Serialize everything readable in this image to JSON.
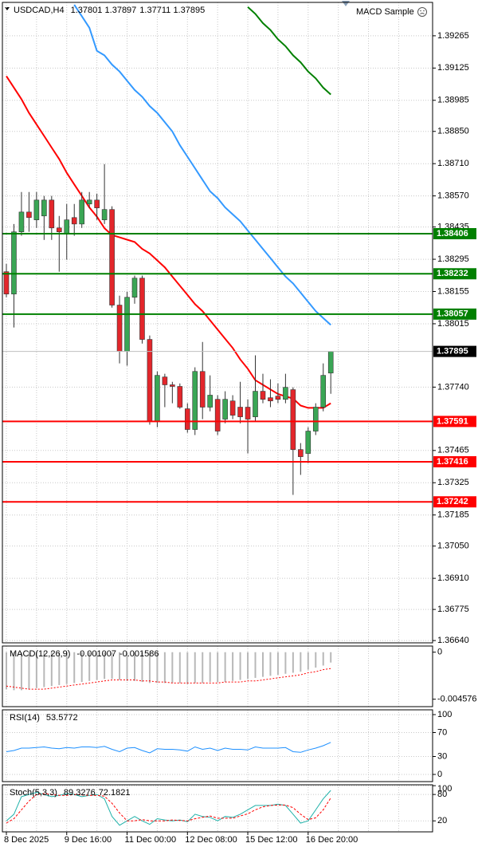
{
  "chart_data": [
    {
      "type": "candlestick",
      "title": "USDCAD,H4",
      "expert": "MACD Sample",
      "categories": [
        "8 Dec 2025",
        null,
        null,
        null,
        null,
        null,
        null,
        null,
        "9 Dec 16:00",
        null,
        null,
        null,
        null,
        null,
        null,
        null,
        "11 Dec 00:00",
        null,
        null,
        null,
        null,
        null,
        null,
        null,
        "12 Dec 08:00",
        null,
        null,
        null,
        null,
        null,
        null,
        null,
        "15 Dec 12:00",
        null,
        null,
        null,
        null,
        null,
        null,
        null,
        "16 Dec 20:00",
        null,
        null,
        null
      ],
      "open": [
        1.38241,
        1.38144,
        1.38414,
        1.385,
        1.38466,
        1.38483,
        1.38552,
        1.38431,
        1.38407,
        1.38476,
        1.38448,
        1.38535,
        1.38552,
        1.38466,
        1.38511,
        1.38096,
        1.37895,
        1.3813,
        1.38213,
        1.37947,
        1.3759,
        1.37784,
        1.3775,
        1.37743,
        1.37646,
        1.37556,
        1.37808,
        1.37653,
        1.37687,
        1.37601,
        1.3768,
        1.37653,
        1.37653,
        1.37611,
        1.37722,
        1.37694,
        1.37701,
        1.37687,
        1.37729,
        1.37469,
        1.37452,
        1.37549,
        1.37653,
        1.37801
      ],
      "high": [
        1.38275,
        1.38448,
        1.38587,
        1.38587,
        1.38587,
        1.3857,
        1.3857,
        1.38483,
        1.38535,
        1.38535,
        1.38587,
        1.38587,
        1.3858,
        1.38708,
        1.38525,
        1.38137,
        1.38154,
        1.38224,
        1.38224,
        1.37964,
        1.37808,
        1.37798,
        1.37763,
        1.37756,
        1.3767,
        1.37826,
        1.37936,
        1.37791,
        1.37705,
        1.37722,
        1.37705,
        1.37763,
        1.37687,
        1.37878,
        1.37798,
        1.37774,
        1.37756,
        1.37798,
        1.37739,
        1.37497,
        1.37566,
        1.3767,
        1.37843,
        1.37897
      ],
      "low": [
        1.3813,
        1.37999,
        1.38397,
        1.38414,
        1.38431,
        1.38379,
        1.38379,
        1.38241,
        1.38293,
        1.38397,
        1.38431,
        1.38518,
        1.38466,
        1.38448,
        1.38085,
        1.37843,
        1.37833,
        1.38102,
        1.37929,
        1.37577,
        1.37566,
        1.37653,
        1.3767,
        1.37646,
        1.37542,
        1.37532,
        1.37601,
        1.37635,
        1.37532,
        1.37583,
        1.37601,
        1.37583,
        1.37452,
        1.3759,
        1.3767,
        1.37653,
        1.3767,
        1.3767,
        1.37272,
        1.37359,
        1.3741,
        1.37532,
        1.37635,
        1.37711
      ],
      "close": [
        1.38144,
        1.38414,
        1.385,
        1.38476,
        1.38552,
        1.38552,
        1.38431,
        1.38414,
        1.38466,
        1.38448,
        1.38552,
        1.38552,
        1.38518,
        1.38511,
        1.38096,
        1.37895,
        1.3813,
        1.38213,
        1.37947,
        1.3759,
        1.37791,
        1.3775,
        1.37743,
        1.37653,
        1.37556,
        1.37808,
        1.37653,
        1.37705,
        1.37549,
        1.37687,
        1.37618,
        1.37611,
        1.37601,
        1.37722,
        1.37687,
        1.3768,
        1.37687,
        1.37739,
        1.37469,
        1.37438,
        1.37549,
        1.37653,
        1.37791,
        1.37895
      ],
      "up_color": "#3aa655",
      "down_color": "#e3262b",
      "lines": [
        {
          "color": "#ff0000",
          "values": [
            1.3909,
            1.3904,
            1.3899,
            1.3893,
            1.3888,
            1.3883,
            1.3878,
            1.3873,
            1.3867,
            1.3862,
            1.3857,
            1.3852,
            1.3848,
            1.3843,
            1.384,
            1.3839,
            1.3838,
            1.3837,
            1.3834,
            1.3832,
            1.3829,
            1.3826,
            1.3822,
            1.3818,
            1.3814,
            1.381,
            1.3807,
            1.3803,
            1.3799,
            1.3795,
            1.3791,
            1.3786,
            1.3782,
            1.3777,
            1.3775,
            1.3773,
            1.3771,
            1.377,
            1.3769,
            1.3766,
            1.3765,
            1.3765,
            1.3765,
            1.3767
          ]
        },
        {
          "color": "#3399ff",
          "values": [
            null,
            null,
            null,
            null,
            null,
            null,
            null,
            null,
            null,
            1.394,
            1.3935,
            1.393,
            1.392,
            1.3918,
            1.3914,
            1.3911,
            1.3907,
            1.3903,
            1.39,
            1.3896,
            1.3893,
            1.3889,
            1.3885,
            1.3879,
            1.3874,
            1.3869,
            1.3864,
            1.3859,
            1.3856,
            1.3852,
            1.3849,
            1.3846,
            1.3842,
            1.3838,
            1.3834,
            1.383,
            1.3826,
            1.3822,
            1.3819,
            1.3815,
            1.3811,
            1.3807,
            1.3804,
            1.3801
          ]
        },
        {
          "color": "#008000",
          "values": [
            null,
            null,
            null,
            null,
            null,
            null,
            null,
            null,
            null,
            null,
            null,
            null,
            null,
            null,
            null,
            null,
            null,
            null,
            null,
            null,
            null,
            null,
            null,
            null,
            null,
            null,
            null,
            null,
            null,
            null,
            null,
            null,
            1.3939,
            1.3936,
            1.3932,
            1.3929,
            1.3925,
            1.3922,
            1.3918,
            1.3915,
            1.3911,
            1.3908,
            1.3904,
            1.3901
          ]
        }
      ],
      "levels": [
        {
          "value": 1.38406,
          "color": "#008000"
        },
        {
          "value": 1.38232,
          "color": "#008000"
        },
        {
          "value": 1.38057,
          "color": "#008000"
        },
        {
          "value": 1.37591,
          "color": "#ff0000"
        },
        {
          "value": 1.37416,
          "color": "#ff0000"
        },
        {
          "value": 1.37242,
          "color": "#ff0000"
        }
      ],
      "ylim": [
        1.3663,
        1.3941
      ],
      "yticks": [
        1.39265,
        1.39125,
        {
          "value": 1.38985,
          "label": "1.38985"
        },
        {
          "value": 1.3885,
          "label": "1.38850"
        },
        {
          "value": 1.3871,
          "label": "1.38710"
        },
        {
          "value": 1.3857,
          "label": "1.38570"
        },
        1.38435,
        1.38295,
        1.38155,
        1.38015,
        {
          "value": 1.3774,
          "label": "1.37740"
        },
        1.37465,
        1.37325,
        1.37185,
        {
          "value": 1.3705,
          "label": "1.37050"
        },
        {
          "value": 1.3691,
          "label": "1.36910"
        },
        1.36775,
        {
          "value": 1.3664,
          "label": "1.36640"
        }
      ],
      "grid": true
    },
    {
      "type": "macd",
      "title": "MACD(12,26,9)",
      "color": "#b8b8b8",
      "signal_color": "#ff0000",
      "values": [
        -0.0036,
        -0.0037,
        -0.0037,
        -0.0036,
        -0.0035,
        -0.0034,
        -0.0033,
        -0.0032,
        -0.0031,
        -0.003,
        -0.0029,
        -0.0028,
        -0.0027,
        -0.0026,
        -0.0026,
        -0.0027,
        -0.0028,
        -0.0028,
        -0.0029,
        -0.003,
        -0.003,
        -0.003,
        -0.003,
        -0.003,
        -0.0031,
        -0.003,
        -0.003,
        -0.0029,
        -0.0029,
        -0.0029,
        -0.0028,
        -0.0027,
        -0.0026,
        -0.0025,
        -0.0024,
        -0.0023,
        -0.0022,
        -0.0021,
        -0.002,
        -0.0019,
        -0.0017,
        -0.0015,
        -0.0013,
        -0.001007
      ],
      "signal": [
        -0.0033,
        -0.0034,
        -0.0035,
        -0.0036,
        -0.0036,
        -0.0036,
        -0.0035,
        -0.0034,
        -0.0033,
        -0.0032,
        -0.0031,
        -0.003,
        -0.0029,
        -0.0028,
        -0.0027,
        -0.0027,
        -0.0027,
        -0.0027,
        -0.0028,
        -0.0028,
        -0.0029,
        -0.0029,
        -0.003,
        -0.003,
        -0.003,
        -0.003,
        -0.003,
        -0.003,
        -0.003,
        -0.0029,
        -0.0029,
        -0.0029,
        -0.0028,
        -0.0028,
        -0.0027,
        -0.0026,
        -0.0025,
        -0.0024,
        -0.0023,
        -0.0022,
        -0.002,
        -0.0019,
        -0.0017,
        -0.001586
      ],
      "ylim": [
        -0.0053,
        0.0006
      ],
      "yticks": [
        0,
        -0.004576
      ],
      "grid": false
    },
    {
      "type": "line",
      "title": "RSI(14)",
      "color": "#1e90ff",
      "values": [
        38,
        40,
        44,
        44,
        45,
        46,
        44,
        43,
        45,
        44,
        46,
        46,
        45,
        47,
        42,
        38,
        44,
        45,
        40,
        36,
        43,
        42,
        42,
        41,
        39,
        46,
        42,
        44,
        40,
        44,
        42,
        42,
        41,
        46,
        44,
        44,
        44,
        45,
        38,
        37,
        41,
        44,
        48,
        53.5772
      ],
      "ylim": [
        -12,
        108
      ],
      "yticks": [
        100,
        70,
        30,
        0
      ],
      "grid": true
    },
    {
      "type": "stochastic",
      "title": "Stoch(5,3,3)",
      "color": "#20b2aa",
      "signal_color": "#ff0000",
      "values": [
        20,
        35,
        75,
        80,
        85,
        80,
        75,
        78,
        82,
        80,
        75,
        78,
        80,
        70,
        30,
        10,
        20,
        30,
        20,
        12,
        25,
        22,
        20,
        22,
        18,
        35,
        30,
        28,
        20,
        30,
        28,
        35,
        45,
        55,
        55,
        55,
        58,
        55,
        35,
        15,
        20,
        45,
        70,
        89.3276
      ],
      "signal": [
        15,
        25,
        45,
        65,
        80,
        82,
        80,
        78,
        78,
        80,
        79,
        78,
        78,
        76,
        60,
        38,
        20,
        20,
        23,
        20,
        20,
        20,
        22,
        21,
        20,
        25,
        28,
        31,
        26,
        26,
        26,
        31,
        36,
        45,
        52,
        55,
        56,
        56,
        50,
        35,
        23,
        27,
        45,
        72.1821
      ],
      "ylim": [
        -5,
        102
      ],
      "yticks": [
        100,
        80,
        20
      ],
      "grid": true
    }
  ]
}
